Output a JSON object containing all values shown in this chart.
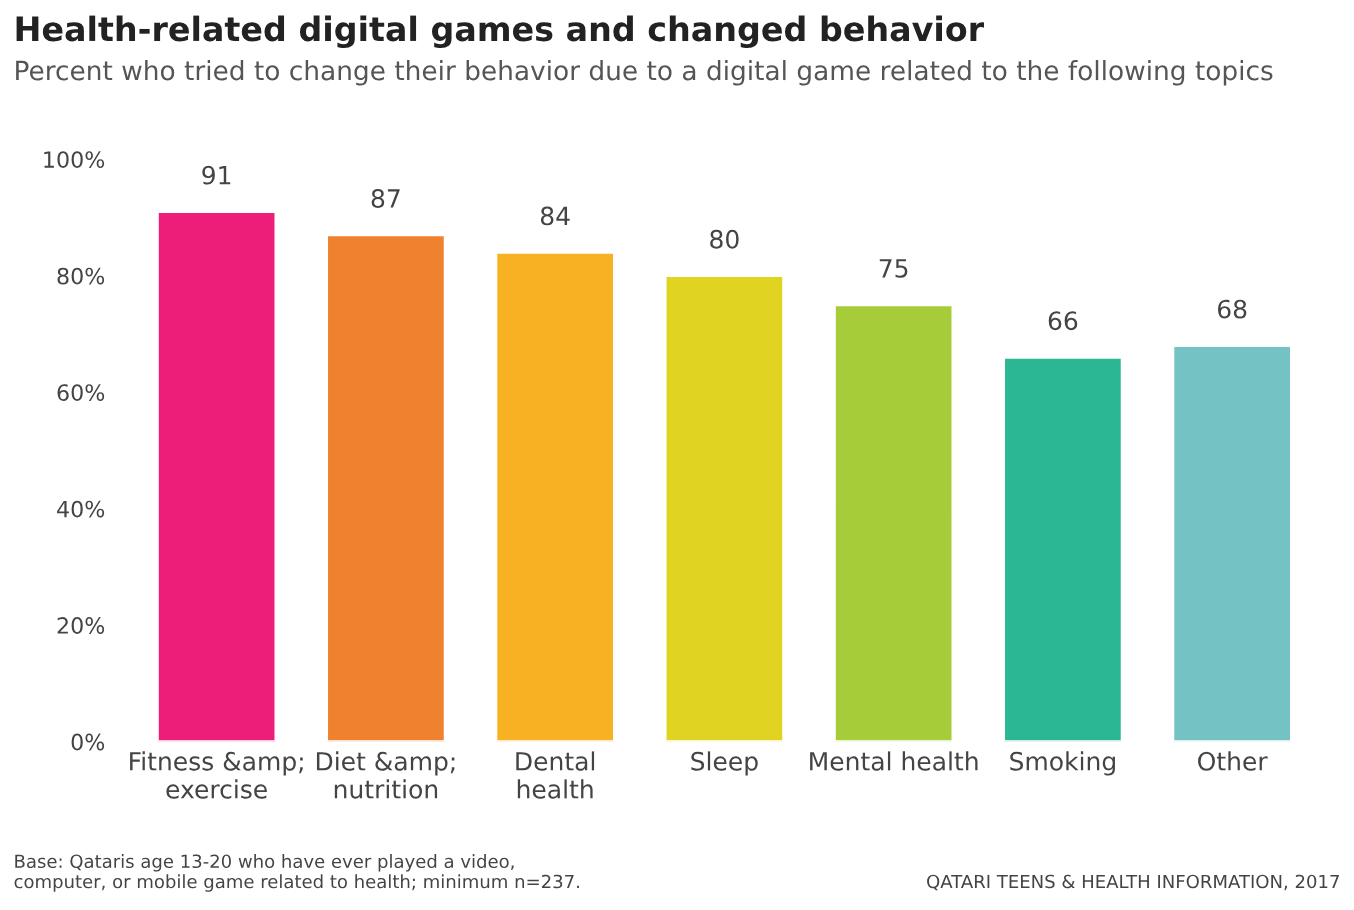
{
  "chart_data": {
    "type": "bar",
    "title": "Health-related digital games and changed behavior",
    "subtitle": "Percent who tried to change their behavior due to a digital game related to the following topics",
    "categories": [
      "Fitness &amp;\nexercise",
      "Diet &amp;\nnutrition",
      "Dental\nhealth",
      "Sleep",
      "Mental health",
      "Smoking",
      "Other"
    ],
    "values": [
      91,
      87,
      84,
      80,
      75,
      66,
      68
    ],
    "colors": [
      "#ec1e79",
      "#f0812e",
      "#f8b122",
      "#e0d321",
      "#a6cc3a",
      "#2bb793",
      "#74c2c4"
    ],
    "ylim": [
      0,
      100
    ],
    "yticks": [
      {
        "value": 0,
        "label": "0%"
      },
      {
        "value": 20,
        "label": "20%"
      },
      {
        "value": 40,
        "label": "40%"
      },
      {
        "value": 60,
        "label": "60%"
      },
      {
        "value": 80,
        "label": "80%"
      },
      {
        "value": 100,
        "label": "100%"
      }
    ],
    "data_labels": true,
    "grid": false,
    "annotations": [
      "Base: Qataris age 13-20 who have ever played a video,\ncomputer, or mobile game related to health; minimum n=237.",
      "QATARI TEENS & HEALTH INFORMATION, 2017"
    ]
  }
}
